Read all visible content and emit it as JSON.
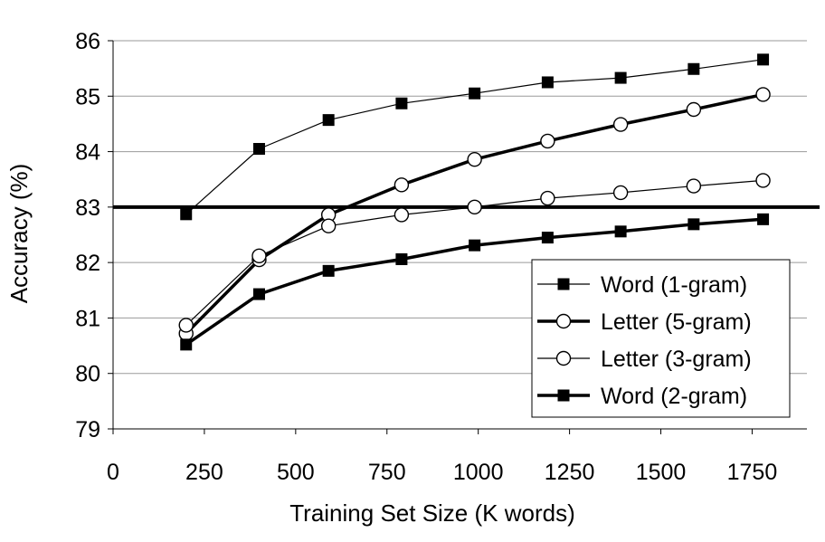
{
  "chart_data": {
    "type": "line",
    "title": "",
    "xlabel": "Training Set Size (K words)",
    "ylabel": "Accuracy (%)",
    "xlim": [
      0,
      1900
    ],
    "ylim": [
      79,
      86
    ],
    "xticks": [
      0,
      250,
      500,
      750,
      1000,
      1250,
      1500,
      1750
    ],
    "yticks": [
      79,
      80,
      81,
      82,
      83,
      84,
      85,
      86
    ],
    "grid": "horizontal",
    "legend_position": "bottom-right",
    "reference_line": {
      "y": 83
    },
    "series": [
      {
        "name": "Word (1-gram)",
        "marker": "filled-square",
        "line": "thin",
        "x": [
          200,
          400,
          590,
          790,
          990,
          1190,
          1390,
          1590,
          1780
        ],
        "values": [
          82.87,
          84.05,
          84.57,
          84.87,
          85.05,
          85.25,
          85.33,
          85.49,
          85.66
        ]
      },
      {
        "name": "Letter (5-gram)",
        "marker": "open-circle",
        "line": "thick",
        "x": [
          200,
          400,
          590,
          790,
          990,
          1190,
          1390,
          1590,
          1780
        ],
        "values": [
          80.72,
          82.05,
          82.86,
          83.4,
          83.86,
          84.19,
          84.49,
          84.76,
          85.03
        ]
      },
      {
        "name": "Letter (3-gram)",
        "marker": "open-circle",
        "line": "thin",
        "x": [
          200,
          400,
          590,
          790,
          990,
          1190,
          1390,
          1590,
          1780
        ],
        "values": [
          80.87,
          82.12,
          82.66,
          82.86,
          83.0,
          83.16,
          83.26,
          83.38,
          83.48
        ]
      },
      {
        "name": "Word (2-gram)",
        "marker": "filled-square",
        "line": "thick",
        "x": [
          200,
          400,
          590,
          790,
          990,
          1190,
          1390,
          1590,
          1780
        ],
        "values": [
          80.52,
          81.43,
          81.85,
          82.06,
          82.31,
          82.45,
          82.56,
          82.69,
          82.78
        ]
      }
    ]
  }
}
